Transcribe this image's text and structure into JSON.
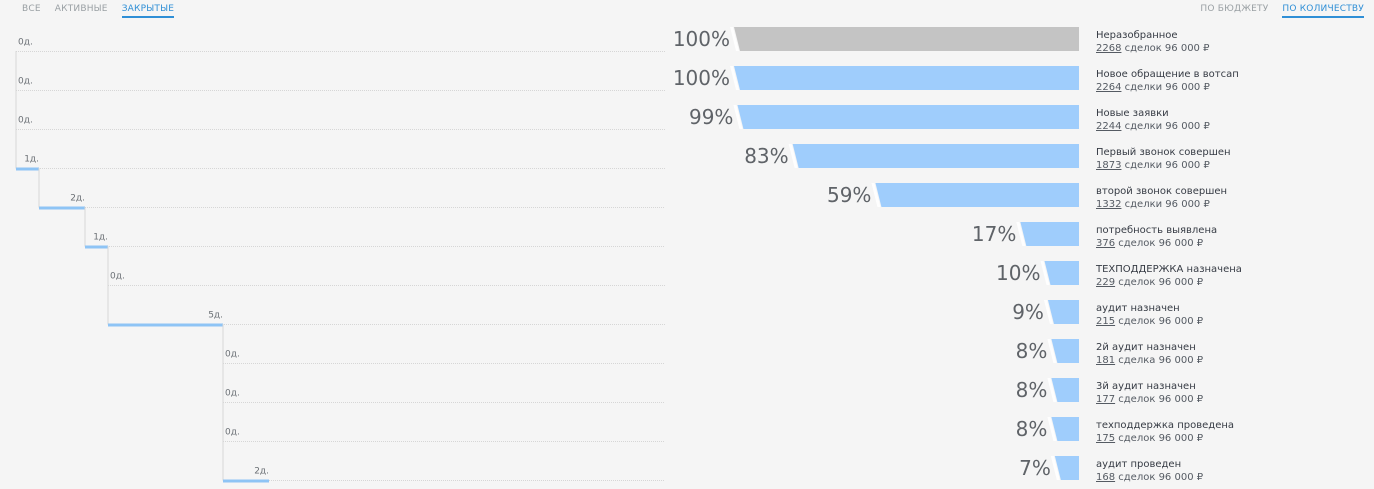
{
  "tabs_left": [
    {
      "label": "ВСЕ",
      "active": false
    },
    {
      "label": "АКТИВНЫЕ",
      "active": false
    },
    {
      "label": "ЗАКРЫТЫЕ",
      "active": true
    }
  ],
  "tabs_right": [
    {
      "label": "ПО БЮДЖЕТУ",
      "active": false
    },
    {
      "label": "ПО КОЛИЧЕСТВУ",
      "active": true
    }
  ],
  "colors": {
    "bar_grey": "#c4c4c4",
    "bar_blue": "#9fcdfc",
    "time_line": "#8ec4f5",
    "accent": "#2f8fd6"
  },
  "chart_data": {
    "type": "bar",
    "orientation": "horizontal-funnel",
    "x_max_percent": 100,
    "stages": [
      {
        "name": "Неразобранное",
        "percent": 100,
        "percent_label": "100%",
        "count": "2268",
        "count_text": " сделок 96 000 ₽",
        "time_label": "0д.",
        "time_days": 0,
        "color": "grey"
      },
      {
        "name": "Новое обращение в вотсап",
        "percent": 100,
        "percent_label": "100%",
        "count": "2264",
        "count_text": " сделки 96 000 ₽",
        "time_label": "0д.",
        "time_days": 0,
        "color": "blue"
      },
      {
        "name": "Новые заявки",
        "percent": 99,
        "percent_label": "99%",
        "count": "2244",
        "count_text": " сделки 96 000 ₽",
        "time_label": "0д.",
        "time_days": 0,
        "color": "blue"
      },
      {
        "name": "Первый звонок совершен",
        "percent": 83,
        "percent_label": "83%",
        "count": "1873",
        "count_text": " сделки 96 000 ₽",
        "time_label": "1д.",
        "time_days": 1,
        "color": "blue"
      },
      {
        "name": "второй звонок совершен",
        "percent": 59,
        "percent_label": "59%",
        "count": "1332",
        "count_text": " сделки 96 000 ₽",
        "time_label": "2д.",
        "time_days": 2,
        "color": "blue"
      },
      {
        "name": "потребность выявлена",
        "percent": 17,
        "percent_label": "17%",
        "count": "376",
        "count_text": " сделок 96 000 ₽",
        "time_label": "1д.",
        "time_days": 1,
        "color": "blue"
      },
      {
        "name": "ТЕХПОДДЕРЖКА назначена",
        "percent": 10,
        "percent_label": "10%",
        "count": "229",
        "count_text": " сделок 96 000 ₽",
        "time_label": "0д.",
        "time_days": 0,
        "color": "blue"
      },
      {
        "name": "аудит назначен",
        "percent": 9,
        "percent_label": "9%",
        "count": "215",
        "count_text": " сделок 96 000 ₽",
        "time_label": "5д.",
        "time_days": 5,
        "color": "blue"
      },
      {
        "name": "2й аудит назначен",
        "percent": 8,
        "percent_label": "8%",
        "count": "181",
        "count_text": " сделка 96 000 ₽",
        "time_label": "0д.",
        "time_days": 0,
        "color": "blue"
      },
      {
        "name": "3й аудит назначен",
        "percent": 8,
        "percent_label": "8%",
        "count": "177",
        "count_text": " сделок 96 000 ₽",
        "time_label": "0д.",
        "time_days": 0,
        "color": "blue"
      },
      {
        "name": "техподдержка проведена",
        "percent": 8,
        "percent_label": "8%",
        "count": "175",
        "count_text": " сделок 96 000 ₽",
        "time_label": "0д.",
        "time_days": 0,
        "color": "blue"
      },
      {
        "name": "аудит проведен",
        "percent": 7,
        "percent_label": "7%",
        "count": "168",
        "count_text": " сделок 96 000 ₽",
        "time_label": "2д.",
        "time_days": 2,
        "color": "blue"
      }
    ]
  }
}
